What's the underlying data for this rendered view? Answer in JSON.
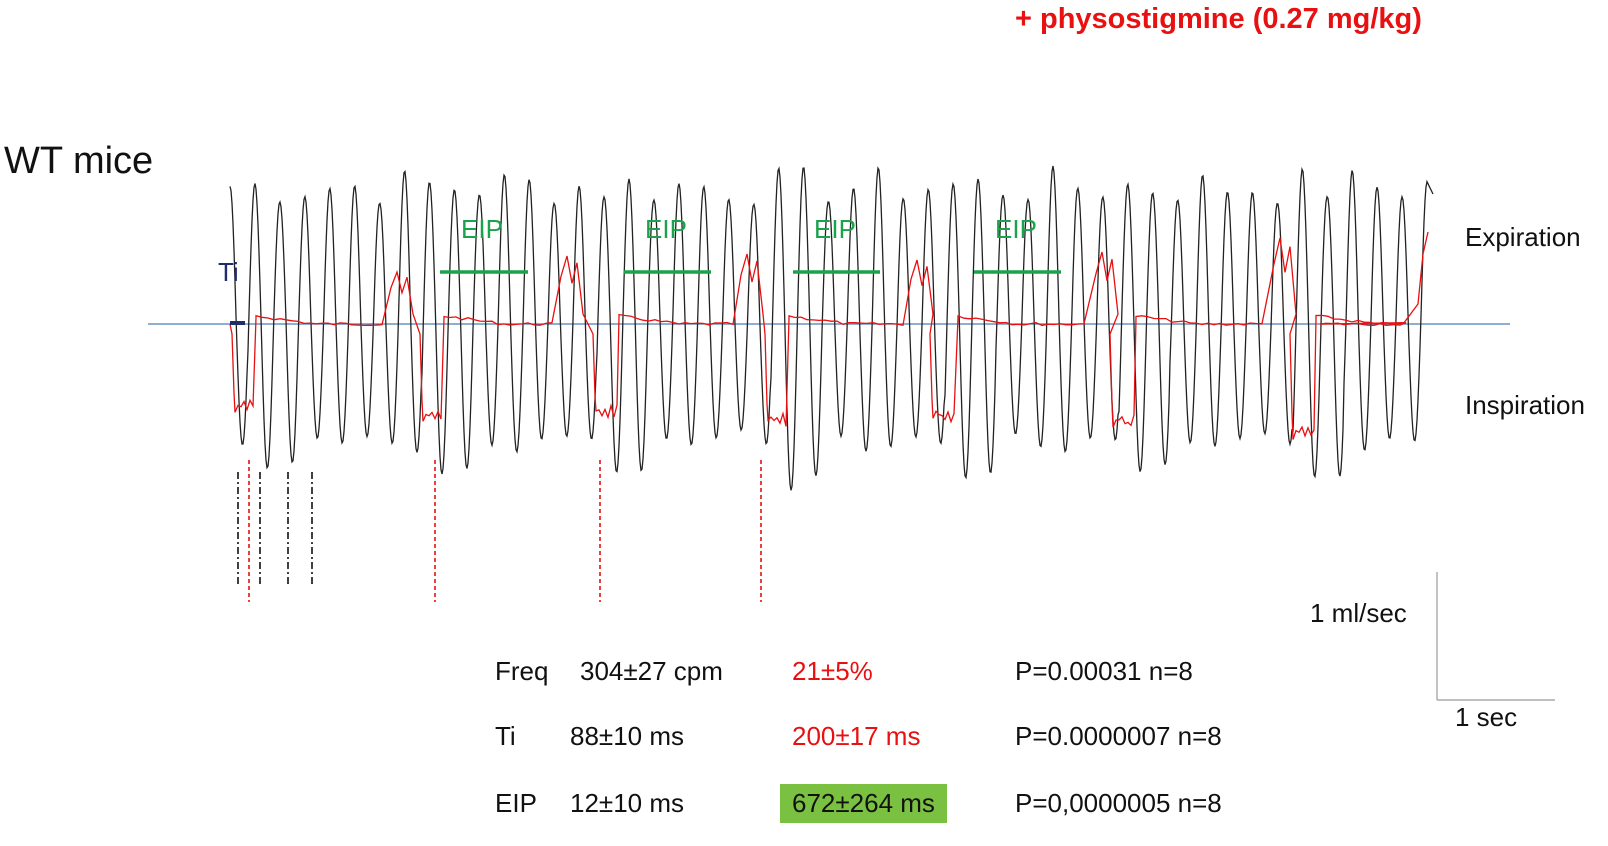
{
  "header": {
    "treatment": "+ physostigmine (0.27 mg/kg)",
    "group": "WT mice"
  },
  "labels": {
    "expiration": "Expiration",
    "inspiration": "Inspiration",
    "scale_flow": "1 ml/sec",
    "scale_time": "1 sec"
  },
  "annotations": {
    "ti": "Ti",
    "eip": [
      "EIP",
      "EIP",
      "EIP",
      "EIP"
    ]
  },
  "stats": [
    {
      "param": "Freq",
      "baseline": "304±27 cpm",
      "treated": "21±5%",
      "p": "P=0.00031 n=8",
      "highlight": false
    },
    {
      "param": "Ti",
      "baseline": "88±10 ms",
      "treated": "200±17 ms",
      "p": "P=0.0000007 n=8",
      "highlight": false
    },
    {
      "param": "EIP",
      "baseline": "12±10 ms",
      "treated": "672±264 ms",
      "p": "P=0,0000005 n=8",
      "highlight": true
    }
  ],
  "colors": {
    "baseline_trace": "#222222",
    "treated_trace": "#e81010",
    "zero_line": "#4a7fb5",
    "eip": "#1aa34a",
    "highlight": "#7ac142"
  },
  "chart_data": {
    "type": "line",
    "title": "",
    "xlabel": "",
    "ylabel": "",
    "series": [
      {
        "color": "#222222",
        "cycles": 48,
        "breathing_rate_cpm": 304
      },
      {
        "color": "#e81010",
        "breaths": 8,
        "inspiratory_time_ms": 200,
        "end_inspiratory_pause_ms": 672
      }
    ],
    "scale_bars": {
      "flow": "1 ml/sec",
      "time": "1 sec"
    }
  }
}
